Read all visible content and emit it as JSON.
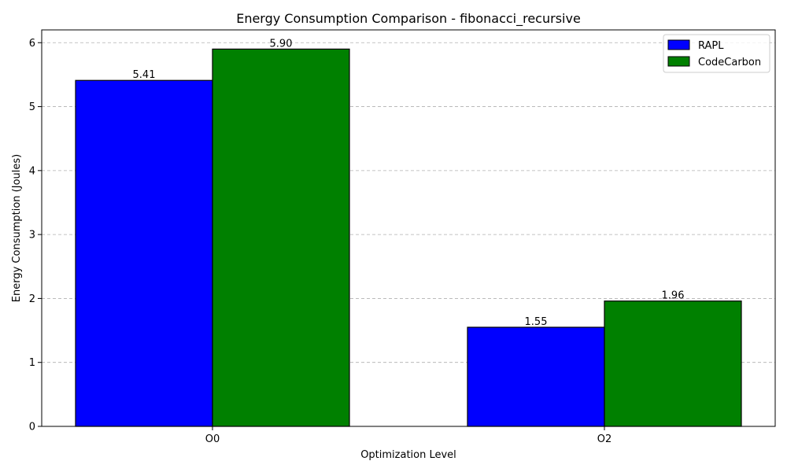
{
  "chart_data": {
    "type": "bar",
    "title": "Energy Consumption Comparison - fibonacci_recursive",
    "xlabel": "Optimization Level",
    "ylabel": "Energy Consumption (Joules)",
    "categories": [
      "O0",
      "O2"
    ],
    "series": [
      {
        "name": "RAPL",
        "values": [
          5.41,
          1.55
        ],
        "color": "#0000ff",
        "labels": [
          "5.41",
          "1.55"
        ]
      },
      {
        "name": "CodeCarbon",
        "values": [
          5.9,
          1.96
        ],
        "color": "#008000",
        "labels": [
          "5.90",
          "1.96"
        ]
      }
    ],
    "ylim": [
      0,
      6.2
    ],
    "yticks": [
      0,
      1,
      2,
      3,
      4,
      5,
      6
    ],
    "ytick_labels": [
      "0",
      "1",
      "2",
      "3",
      "4",
      "5",
      "6"
    ],
    "grid": "y-dashed",
    "legend_position": "top-right"
  }
}
